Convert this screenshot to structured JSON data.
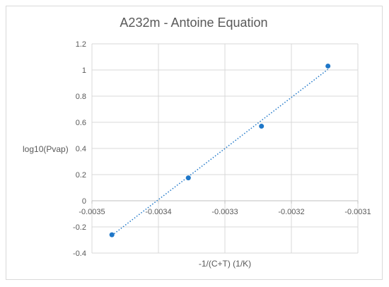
{
  "chart_data": {
    "type": "scatter",
    "title": "A232m - Antoine Equation",
    "xlabel": "-1/(C+T) (1/K)",
    "ylabel": "log10(Pvap)",
    "xlim": [
      -0.0035,
      -0.0031
    ],
    "ylim": [
      -0.4,
      1.2
    ],
    "x_ticks": [
      -0.0035,
      -0.0034,
      -0.0033,
      -0.0032,
      -0.0031
    ],
    "x_tick_labels": [
      "-0.0035",
      "-0.0034",
      "-0.0033",
      "-0.0032",
      "-0.0031"
    ],
    "y_ticks": [
      -0.4,
      -0.2,
      0,
      0.2,
      0.4,
      0.6,
      0.8,
      1,
      1.2
    ],
    "y_tick_labels": [
      "-0.4",
      "-0.2",
      "0",
      "0.2",
      "0.4",
      "0.6",
      "0.8",
      "1",
      "1.2"
    ],
    "grid": true,
    "legend": "none",
    "series": [
      {
        "x": [
          -0.00347,
          -0.003355,
          -0.003245,
          -0.003145
        ],
        "y": [
          -0.26,
          0.175,
          0.57,
          1.03
        ],
        "color": "#1f77c8"
      }
    ],
    "trendline": {
      "style": "dotted",
      "color": "#1f77c8",
      "x": [
        -0.00347,
        -0.003145
      ],
      "y": [
        -0.265,
        1.005
      ]
    }
  }
}
